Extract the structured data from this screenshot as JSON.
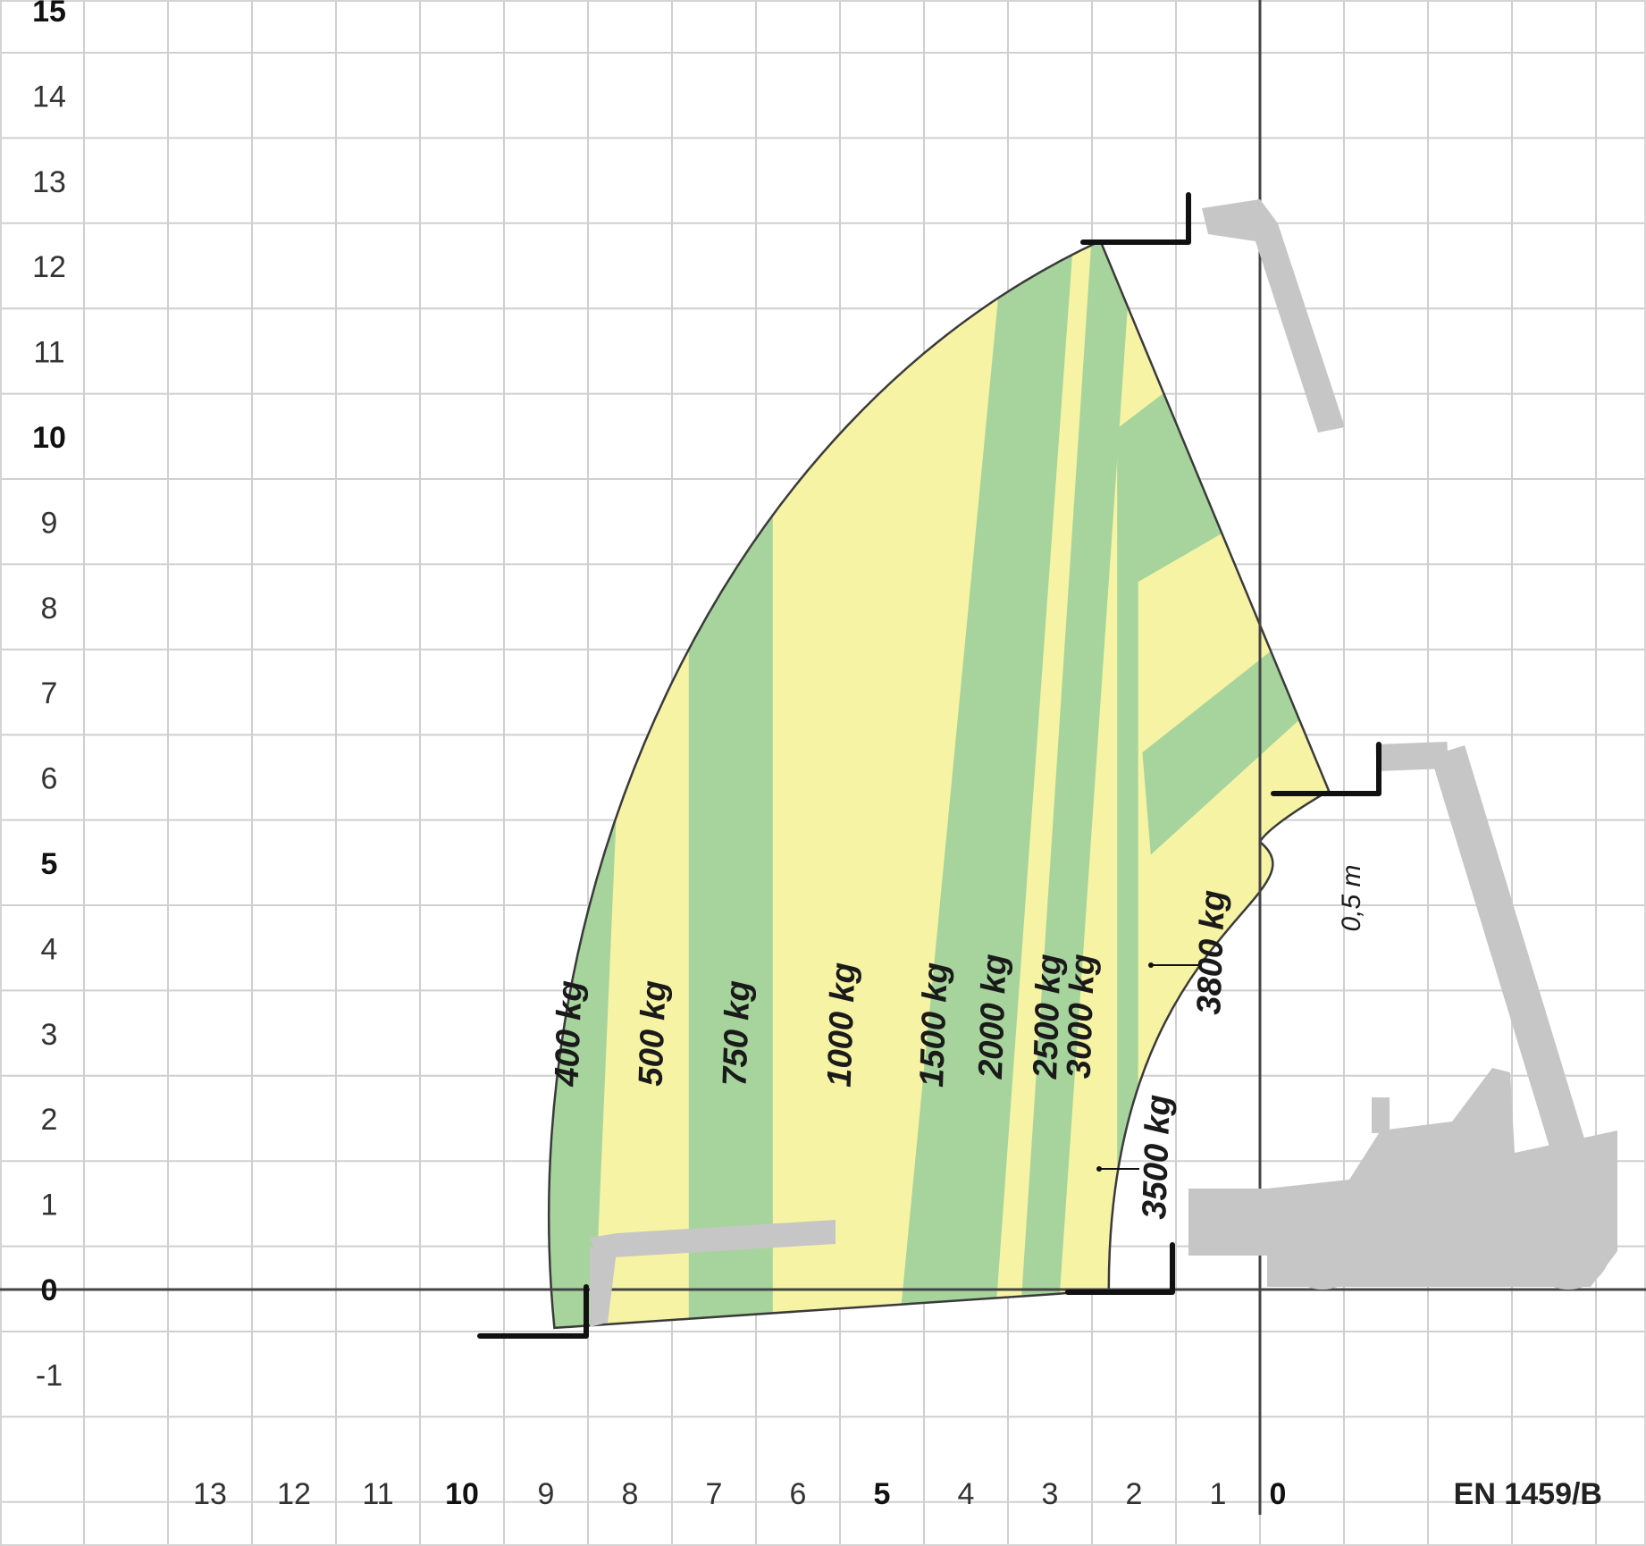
{
  "chart_data": {
    "type": "load_chart",
    "standard": "EN 1459/B",
    "x_axis": {
      "range": [
        -4,
        15
      ],
      "tick_labels": [
        {
          "value": 13,
          "label": "13",
          "bold": false
        },
        {
          "value": 12,
          "label": "12",
          "bold": false
        },
        {
          "value": 11,
          "label": "11",
          "bold": false
        },
        {
          "value": 10,
          "label": "10",
          "bold": true
        },
        {
          "value": 9,
          "label": "9",
          "bold": false
        },
        {
          "value": 8,
          "label": "8",
          "bold": false
        },
        {
          "value": 7,
          "label": "7",
          "bold": false
        },
        {
          "value": 6,
          "label": "6",
          "bold": false
        },
        {
          "value": 5,
          "label": "5",
          "bold": true
        },
        {
          "value": 4,
          "label": "4",
          "bold": false
        },
        {
          "value": 3,
          "label": "3",
          "bold": false
        },
        {
          "value": 2,
          "label": "2",
          "bold": false
        },
        {
          "value": 1,
          "label": "1",
          "bold": false
        },
        {
          "value": 0,
          "label": "0",
          "bold": true
        }
      ]
    },
    "y_axis": {
      "range": [
        -2,
        15.3
      ],
      "tick_labels": [
        {
          "value": 15,
          "label": "15",
          "bold": true
        },
        {
          "value": 14,
          "label": "14",
          "bold": false
        },
        {
          "value": 13,
          "label": "13",
          "bold": false
        },
        {
          "value": 12,
          "label": "12",
          "bold": false
        },
        {
          "value": 11,
          "label": "11",
          "bold": false
        },
        {
          "value": 10,
          "label": "10",
          "bold": true
        },
        {
          "value": 9,
          "label": "9",
          "bold": false
        },
        {
          "value": 8,
          "label": "8",
          "bold": false
        },
        {
          "value": 7,
          "label": "7",
          "bold": false
        },
        {
          "value": 6,
          "label": "6",
          "bold": false
        },
        {
          "value": 5,
          "label": "5",
          "bold": true
        },
        {
          "value": 4,
          "label": "4",
          "bold": false
        },
        {
          "value": 3,
          "label": "3",
          "bold": false
        },
        {
          "value": 2,
          "label": "2",
          "bold": false
        },
        {
          "value": 1,
          "label": "1",
          "bold": false
        },
        {
          "value": 0,
          "label": "0",
          "bold": true
        },
        {
          "value": -1,
          "label": "-1",
          "bold": false
        }
      ]
    },
    "grid": true,
    "load_zones": [
      {
        "label": "400 kg",
        "color": "#a6d49c",
        "label_at": [
          8.1,
          3.0
        ]
      },
      {
        "label": "500 kg",
        "color": "#f7f3a4",
        "label_at": [
          7.1,
          3.0
        ]
      },
      {
        "label": "750 kg",
        "color": "#a6d49c",
        "label_at": [
          6.1,
          3.0
        ]
      },
      {
        "label": "1000 kg",
        "color": "#f7f3a4",
        "label_at": [
          4.85,
          3.1
        ]
      },
      {
        "label": "1500 kg",
        "color": "#a6d49c",
        "label_at": [
          3.75,
          3.1
        ]
      },
      {
        "label": "2000 kg",
        "color": "#f7f3a4",
        "label_at": [
          3.05,
          3.2
        ]
      },
      {
        "label": "2500 kg",
        "color": "#a6d49c",
        "label_at": [
          2.4,
          3.2
        ]
      },
      {
        "label": "3000 kg",
        "color": "#f7f3a4",
        "label_at": [
          2.0,
          3.2
        ]
      },
      {
        "label": "3500 kg",
        "color": "#a6d49c",
        "label_at": [
          1.1,
          1.55
        ]
      },
      {
        "label": "3800 kg",
        "color": "#f7f3a4",
        "label_at": [
          0.45,
          3.95
        ]
      }
    ],
    "annotation": "0,5 m"
  }
}
